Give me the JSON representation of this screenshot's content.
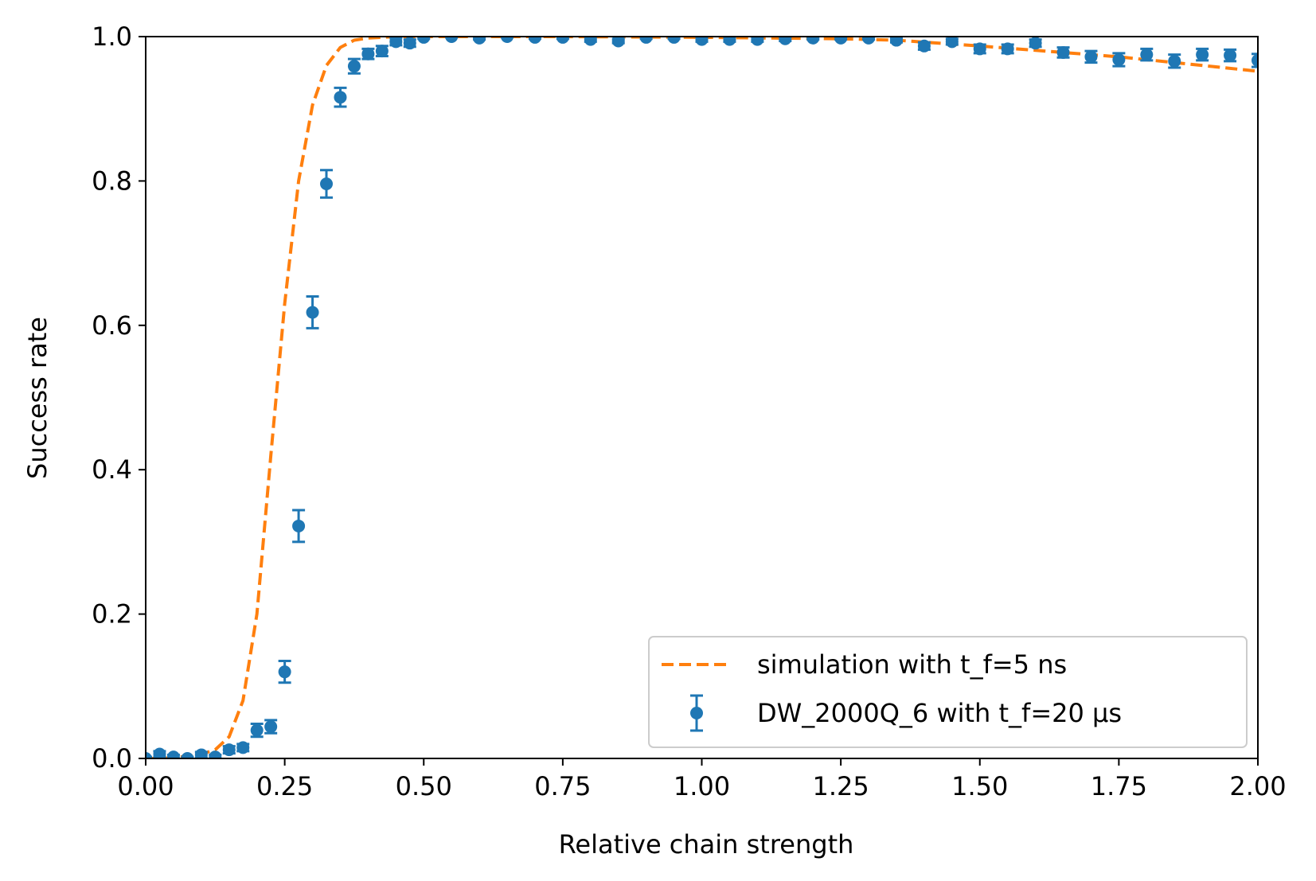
{
  "chart_data": {
    "type": "scatter",
    "xlabel": "Relative chain strength",
    "ylabel": "Success rate",
    "xlim": [
      0,
      2
    ],
    "ylim": [
      0,
      1
    ],
    "grid": false,
    "legend_position": "bottom-right",
    "x_ticks": [
      "0.00",
      "0.25",
      "0.50",
      "0.75",
      "1.00",
      "1.25",
      "1.50",
      "1.75",
      "2.00"
    ],
    "y_ticks": [
      "0.0",
      "0.2",
      "0.4",
      "0.6",
      "0.8",
      "1.0"
    ],
    "series": [
      {
        "name": "simulation with t_f=5 ns",
        "style": "dashed-line",
        "color": "#ff7f0e",
        "x": [
          0,
          0.025,
          0.05,
          0.075,
          0.1,
          0.125,
          0.15,
          0.175,
          0.2,
          0.225,
          0.25,
          0.275,
          0.3,
          0.325,
          0.35,
          0.375,
          0.4,
          0.425,
          0.45,
          0.5,
          0.6,
          0.75,
          1.0,
          1.25,
          1.35,
          1.5,
          1.75,
          2.0
        ],
        "y": [
          0.0,
          0.0,
          0.001,
          0.003,
          0.006,
          0.012,
          0.03,
          0.08,
          0.2,
          0.42,
          0.63,
          0.8,
          0.905,
          0.96,
          0.985,
          0.995,
          0.998,
          0.999,
          1.0,
          1.0,
          1.0,
          1.0,
          0.999,
          0.997,
          0.995,
          0.987,
          0.972,
          0.952
        ]
      },
      {
        "name": "DW_2000Q_6 with t_f=20 µs",
        "style": "errorbar-points",
        "color": "#1f77b4",
        "x": [
          0,
          0.025,
          0.05,
          0.075,
          0.1,
          0.125,
          0.15,
          0.175,
          0.2,
          0.225,
          0.25,
          0.275,
          0.3,
          0.325,
          0.35,
          0.375,
          0.4,
          0.425,
          0.45,
          0.475,
          0.5,
          0.55,
          0.6,
          0.65,
          0.7,
          0.75,
          0.8,
          0.85,
          0.9,
          0.95,
          1.0,
          1.05,
          1.1,
          1.15,
          1.2,
          1.25,
          1.3,
          1.35,
          1.4,
          1.45,
          1.5,
          1.55,
          1.6,
          1.65,
          1.7,
          1.75,
          1.8,
          1.85,
          1.9,
          1.95,
          2.0
        ],
        "y": [
          0.0,
          0.006,
          0.002,
          0.0,
          0.005,
          0.002,
          0.012,
          0.015,
          0.039,
          0.044,
          0.12,
          0.322,
          0.618,
          0.796,
          0.916,
          0.959,
          0.976,
          0.98,
          0.993,
          0.991,
          0.999,
          1.0,
          0.998,
          1.0,
          0.999,
          0.999,
          0.996,
          0.994,
          0.999,
          0.999,
          0.996,
          0.996,
          0.996,
          0.997,
          0.998,
          0.998,
          0.998,
          0.995,
          0.987,
          0.993,
          0.983,
          0.983,
          0.991,
          0.978,
          0.972,
          0.968,
          0.975,
          0.966,
          0.975,
          0.974,
          0.967
        ],
        "yerr": [
          0.002,
          0.004,
          0.003,
          0.002,
          0.004,
          0.003,
          0.005,
          0.005,
          0.009,
          0.009,
          0.015,
          0.022,
          0.022,
          0.019,
          0.013,
          0.01,
          0.007,
          0.007,
          0.005,
          0.005,
          0.002,
          0.001,
          0.002,
          0.001,
          0.002,
          0.002,
          0.003,
          0.003,
          0.002,
          0.002,
          0.003,
          0.003,
          0.003,
          0.003,
          0.002,
          0.002,
          0.002,
          0.003,
          0.005,
          0.004,
          0.006,
          0.006,
          0.005,
          0.007,
          0.008,
          0.009,
          0.008,
          0.009,
          0.008,
          0.008,
          0.009
        ]
      }
    ]
  }
}
